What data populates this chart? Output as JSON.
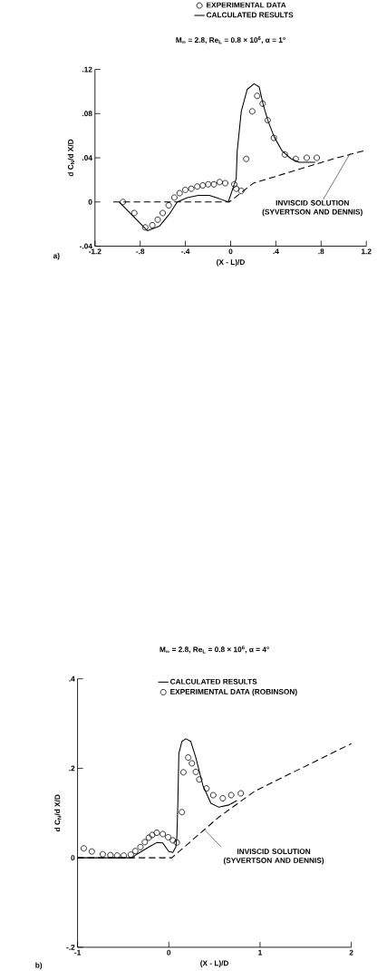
{
  "chart_data": [
    {
      "type": "line",
      "title": "M$_{∞}$ = 2.8, Re$_{L}$ = 0.8 × 10$^{6}$, α = 1°",
      "xlabel": "(X - L)/D",
      "ylabel": "d C$_{N}$/d X/D",
      "legend": "top",
      "xlim": [
        -1.2,
        1.2
      ],
      "ylim": [
        -0.04,
        0.12
      ],
      "xticks": [
        -1.2,
        {
          "value": -0.8,
          "label": "-.8"
        },
        {
          "value": -0.4,
          "label": "-.4"
        },
        0,
        {
          "value": 0.4,
          "label": ".4"
        },
        {
          "value": 0.8,
          "label": ".8"
        },
        1.2
      ],
      "yticks": [
        {
          "value": -0.04,
          "label": "-.04"
        },
        0,
        {
          "value": 0.04,
          "label": ".04"
        },
        {
          "value": 0.08,
          "label": ".08"
        },
        {
          "value": 0.12,
          "label": ".12"
        }
      ],
      "series": [
        {
          "name": "EXPERIMENTAL DATA",
          "type": "scatter",
          "marker": "circle",
          "color": "#000000",
          "x": [
            -0.953,
            -0.852,
            -0.755,
            -0.693,
            -0.645,
            -0.601,
            -0.548,
            -0.498,
            -0.451,
            -0.401,
            -0.348,
            -0.295,
            -0.246,
            -0.198,
            -0.148,
            -0.097,
            -0.048,
            0.032,
            0.049,
            0.094,
            0.138,
            0.191,
            0.235,
            0.283,
            0.327,
            0.382,
            0.479,
            0.576,
            0.673,
            0.762
          ],
          "values": [
            0.0,
            -0.01,
            -0.023,
            -0.021,
            -0.016,
            -0.01,
            -0.003,
            0.004,
            0.008,
            0.011,
            0.012,
            0.014,
            0.015,
            0.016,
            0.016,
            0.018,
            0.017,
            0.016,
            0.012,
            0.01,
            0.039,
            0.082,
            0.096,
            0.089,
            0.074,
            0.058,
            0.043,
            0.039,
            0.04,
            0.04
          ]
        },
        {
          "name": "CALCULATED RESULTS",
          "marker": "none",
          "line_style": "solid",
          "color": "#000000",
          "x": [
            -0.985,
            -0.737,
            -0.631,
            -0.542,
            -0.472,
            -0.383,
            -0.286,
            -0.189,
            -0.101,
            -0.021,
            0.049,
            0.058,
            0.094,
            0.147,
            0.208,
            0.253,
            0.288,
            0.332,
            0.385,
            0.456,
            0.536,
            0.606,
            0.748
          ],
          "values": [
            0.0,
            -0.026,
            -0.022,
            -0.011,
            0.0,
            0.004,
            0.006,
            0.006,
            0.003,
            0.0,
            0.021,
            0.046,
            0.082,
            0.102,
            0.107,
            0.104,
            0.088,
            0.073,
            0.059,
            0.046,
            0.039,
            0.036,
            0.036
          ]
        },
        {
          "marker": "none",
          "line_style": "dashed",
          "color": "#000000",
          "x": [
            -1.038,
            -0.012,
            0.2,
            0.553,
            0.907,
            1.2
          ],
          "values": [
            0.0,
            0.0,
            0.017,
            0.028,
            0.039,
            0.047
          ]
        }
      ],
      "annotations": [
        {
          "text": "INVISCID SOLUTION (SYVERTSON AND DENNIS)",
          "x": 1.057,
          "y": 0.044
        },
        "a)"
      ]
    },
    {
      "type": "line",
      "title": "M$_{∞}$ = 2.8, Re$_{L}$ = 0.8 × 10$^{6}$, α = 4°",
      "xlabel": "(X - L)/D",
      "ylabel": "d C$_{N}$/d X/D",
      "legend": "top",
      "xlim": [
        -1,
        2
      ],
      "ylim": [
        -0.2,
        0.4
      ],
      "xticks": [
        -1,
        0,
        1,
        2
      ],
      "yticks": [
        {
          "value": -0.2,
          "label": "-.2"
        },
        0,
        {
          "value": 0.2,
          "label": ".2"
        },
        {
          "value": 0.4,
          "label": ".4"
        }
      ],
      "series": [
        {
          "name": "CALCULATED RESULTS",
          "marker": "none",
          "line_style": "solid",
          "color": "#000000",
          "x": [
            -1.0,
            -0.4,
            -0.35,
            -0.219,
            -0.132,
            -0.066,
            0.0,
            0.044,
            0.077,
            0.088,
            0.099,
            0.11,
            0.143,
            0.187,
            0.241,
            0.296,
            0.373,
            0.461,
            0.549,
            0.658,
            0.746
          ],
          "values": [
            0.0,
            0.0,
            0.008,
            0.024,
            0.034,
            0.033,
            0.014,
            0.012,
            0.024,
            0.046,
            0.122,
            0.233,
            0.26,
            0.266,
            0.26,
            0.224,
            0.162,
            0.122,
            0.113,
            0.118,
            0.128
          ]
        },
        {
          "name": "EXPERIMENTAL DATA (ROBINSON)",
          "type": "scatter",
          "marker": "circle",
          "color": "#000000",
          "x": [
            -0.932,
            -0.844,
            -0.724,
            -0.64,
            -0.566,
            -0.493,
            -0.416,
            -0.368,
            -0.311,
            -0.263,
            -0.219,
            -0.182,
            -0.132,
            -0.066,
            -0.007,
            0.044,
            0.088,
            0.143,
            0.16,
            0.213,
            0.253,
            0.296,
            0.334,
            0.413,
            0.487,
            0.592,
            0.684,
            0.789
          ],
          "values": [
            0.021,
            0.014,
            0.008,
            0.006,
            0.005,
            0.005,
            0.007,
            0.015,
            0.024,
            0.035,
            0.045,
            0.051,
            0.056,
            0.053,
            0.046,
            0.039,
            0.034,
            0.102,
            0.191,
            0.224,
            0.211,
            0.192,
            0.175,
            0.155,
            0.14,
            0.133,
            0.14,
            0.144
          ]
        },
        {
          "marker": "none",
          "line_style": "dashed",
          "color": "#000000",
          "x": [
            -1.0,
            0.033,
            0.549,
            0.943,
            1.38,
            2.0
          ],
          "values": [
            0.0,
            0.0,
            0.091,
            0.149,
            0.193,
            0.255
          ]
        }
      ],
      "annotations": [
        {
          "text": "INVISCID SOLUTION (SYVERTSON AND DENNIS)",
          "x": 0.395,
          "y": 0.062
        },
        "b)"
      ]
    }
  ]
}
